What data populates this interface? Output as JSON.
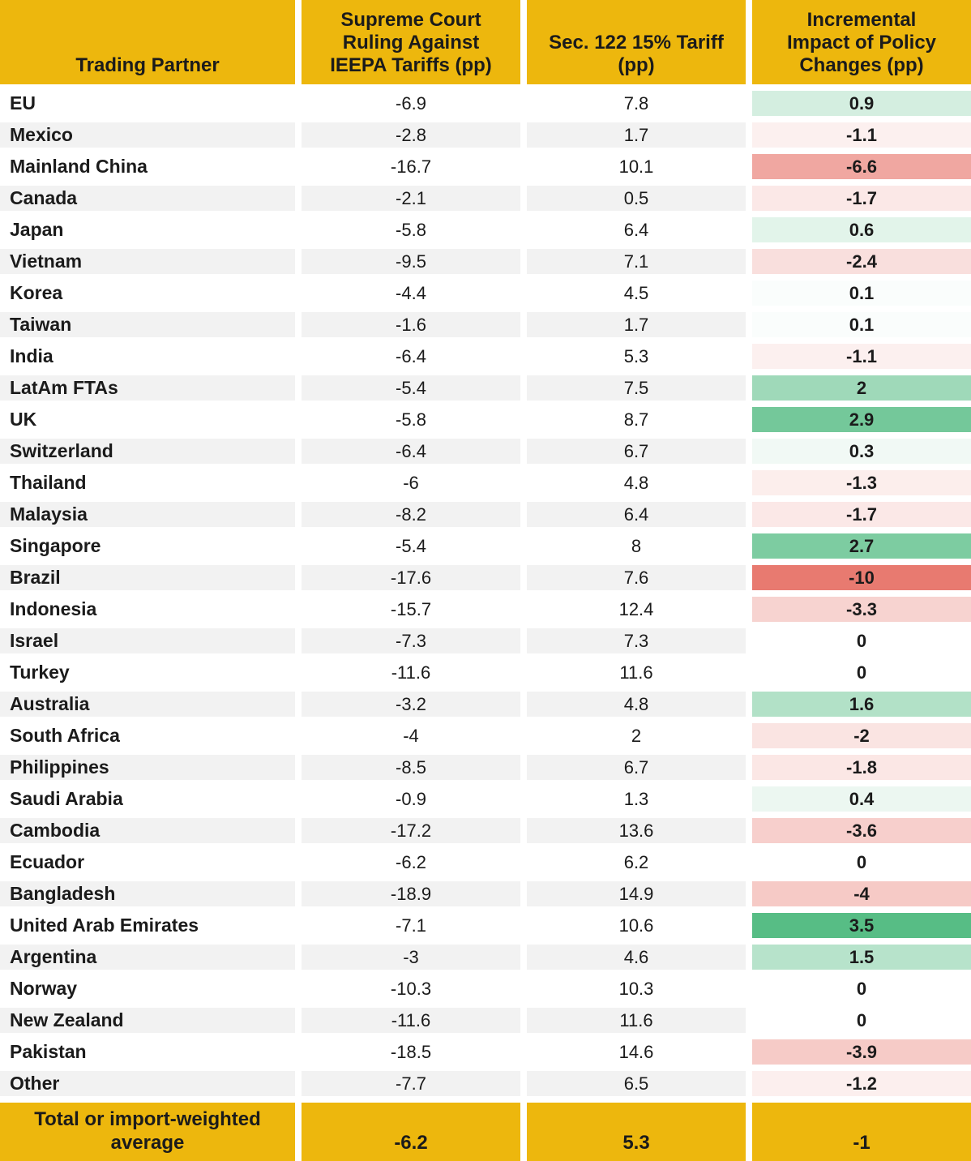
{
  "theme": {
    "header_bg": "#EDB70D",
    "footer_bg": "#EDB70D",
    "row_alt_bg": "#F2F2F2",
    "text_color": "#1B1B1B",
    "impact_green_max": "#57BD85",
    "impact_red_max": "#E87A70",
    "impact_zero": "#FFFFFF",
    "green_scale_max_value": 3.5,
    "red_scale_min_value": -10
  },
  "chart_data": {
    "type": "table",
    "title": "",
    "columns": [
      "Trading Partner",
      "Supreme Court Ruling Against IEEPA Tariffs (pp)",
      "Sec. 122 15% Tariff (pp)",
      "Incremental Impact of Policy Changes (pp)"
    ],
    "column_header_lines": [
      [
        "Trading Partner"
      ],
      [
        "Supreme Court",
        "Ruling Against",
        "IEEPA Tariffs (pp)"
      ],
      [
        "Sec. 122 15% Tariff",
        "(pp)"
      ],
      [
        "Incremental",
        "Impact of Policy",
        "Changes (pp)"
      ]
    ],
    "rows": [
      [
        "EU",
        -6.9,
        7.8,
        0.9
      ],
      [
        "Mexico",
        -2.8,
        1.7,
        -1.1
      ],
      [
        "Mainland China",
        -16.7,
        10.1,
        -6.6
      ],
      [
        "Canada",
        -2.1,
        0.5,
        -1.7
      ],
      [
        "Japan",
        -5.8,
        6.4,
        0.6
      ],
      [
        "Vietnam",
        -9.5,
        7.1,
        -2.4
      ],
      [
        "Korea",
        -4.4,
        4.5,
        0.1
      ],
      [
        "Taiwan",
        -1.6,
        1.7,
        0.1
      ],
      [
        "India",
        -6.4,
        5.3,
        -1.1
      ],
      [
        "LatAm FTAs",
        -5.4,
        7.5,
        2
      ],
      [
        "UK",
        -5.8,
        8.7,
        2.9
      ],
      [
        "Switzerland",
        -6.4,
        6.7,
        0.3
      ],
      [
        "Thailand",
        -6,
        4.8,
        -1.3
      ],
      [
        "Malaysia",
        -8.2,
        6.4,
        -1.7
      ],
      [
        "Singapore",
        -5.4,
        8,
        2.7
      ],
      [
        "Brazil",
        -17.6,
        7.6,
        -10
      ],
      [
        "Indonesia",
        -15.7,
        12.4,
        -3.3
      ],
      [
        "Israel",
        -7.3,
        7.3,
        0
      ],
      [
        "Turkey",
        -11.6,
        11.6,
        0
      ],
      [
        "Australia",
        -3.2,
        4.8,
        1.6
      ],
      [
        "South Africa",
        -4,
        2,
        -2
      ],
      [
        "Philippines",
        -8.5,
        6.7,
        -1.8
      ],
      [
        "Saudi Arabia",
        -0.9,
        1.3,
        0.4
      ],
      [
        "Cambodia",
        -17.2,
        13.6,
        -3.6
      ],
      [
        "Ecuador",
        -6.2,
        6.2,
        0
      ],
      [
        "Bangladesh",
        -18.9,
        14.9,
        -4
      ],
      [
        "United Arab Emirates",
        -7.1,
        10.6,
        3.5
      ],
      [
        "Argentina",
        -3,
        4.6,
        1.5
      ],
      [
        "Norway",
        -10.3,
        10.3,
        0
      ],
      [
        "New Zealand",
        -11.6,
        11.6,
        0
      ],
      [
        "Pakistan",
        -18.5,
        14.6,
        -3.9
      ],
      [
        "Other",
        -7.7,
        6.5,
        -1.2
      ]
    ],
    "footer": {
      "label": "Total or import-weighted average",
      "label_lines": [
        "Total or import-weighted",
        "average"
      ],
      "values": [
        -6.2,
        5.3,
        -1
      ]
    },
    "layout_hints": {
      "conditional_format_column": "Incremental Impact of Policy Changes (pp)",
      "scale": "diverging red-white-green"
    }
  }
}
